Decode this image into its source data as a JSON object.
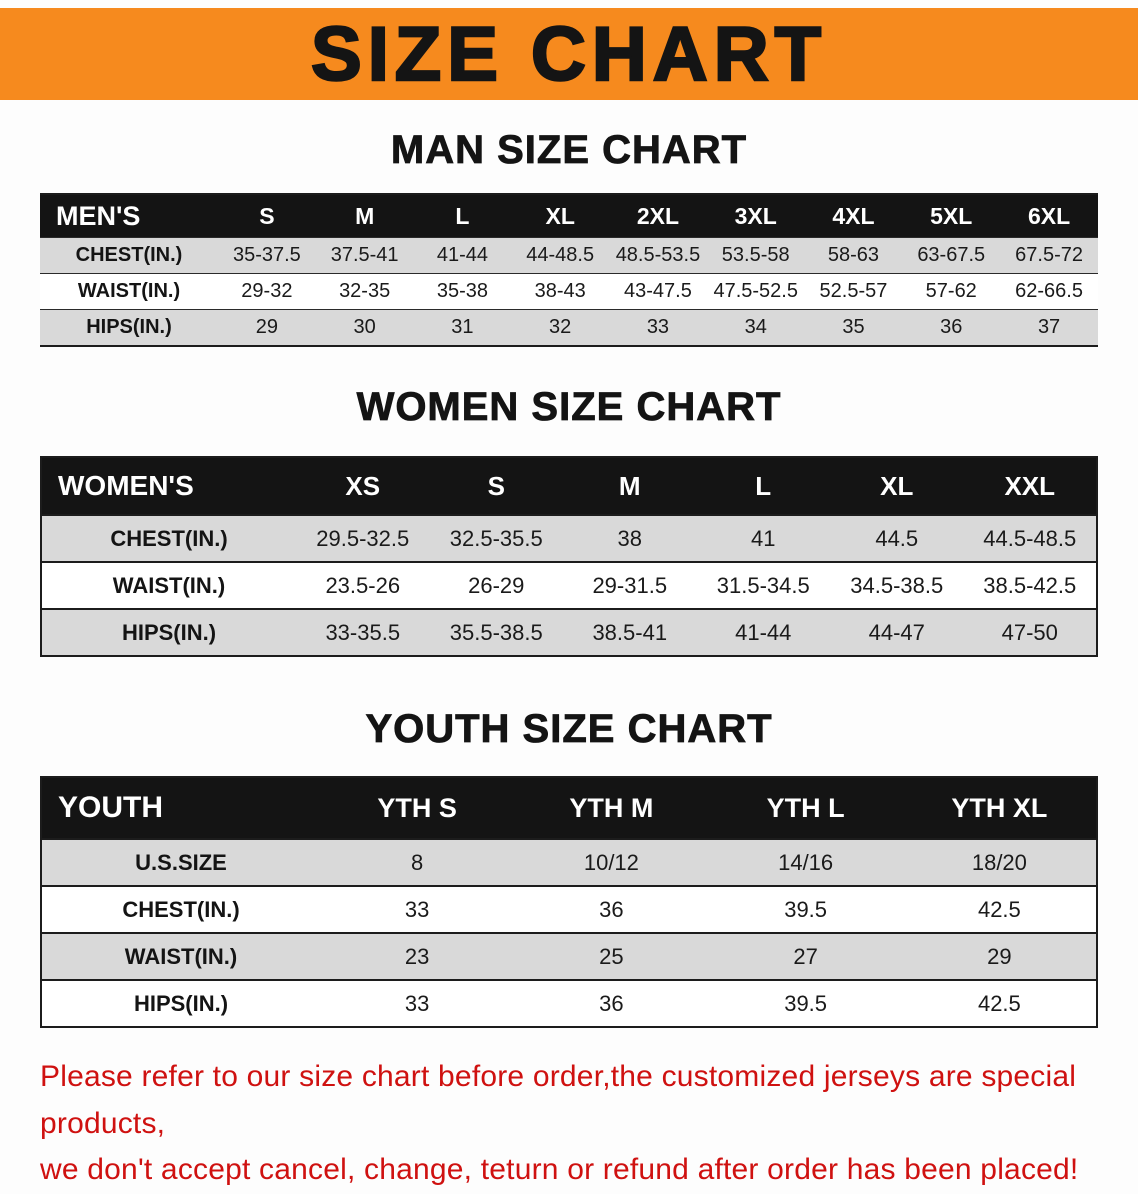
{
  "banner": {
    "title": "SIZE CHART"
  },
  "man": {
    "heading": "MAN SIZE CHART",
    "table": {
      "header": [
        "MEN'S",
        "S",
        "M",
        "L",
        "XL",
        "2XL",
        "3XL",
        "4XL",
        "5XL",
        "6XL"
      ],
      "rows": [
        [
          "CHEST(IN.)",
          "35-37.5",
          "37.5-41",
          "41-44",
          "44-48.5",
          "48.5-53.5",
          "53.5-58",
          "58-63",
          "63-67.5",
          "67.5-72"
        ],
        [
          "WAIST(IN.)",
          "29-32",
          "32-35",
          "35-38",
          "38-43",
          "43-47.5",
          "47.5-52.5",
          "52.5-57",
          "57-62",
          "62-66.5"
        ],
        [
          "HIPS(IN.)",
          "29",
          "30",
          "31",
          "32",
          "33",
          "34",
          "35",
          "36",
          "37"
        ]
      ]
    }
  },
  "women": {
    "heading": "WOMEN SIZE CHART",
    "table": {
      "header": [
        "WOMEN'S",
        "XS",
        "S",
        "M",
        "L",
        "XL",
        "XXL"
      ],
      "rows": [
        [
          "CHEST(IN.)",
          "29.5-32.5",
          "32.5-35.5",
          "38",
          "41",
          "44.5",
          "44.5-48.5"
        ],
        [
          "WAIST(IN.)",
          "23.5-26",
          "26-29",
          "29-31.5",
          "31.5-34.5",
          "34.5-38.5",
          "38.5-42.5"
        ],
        [
          "HIPS(IN.)",
          "33-35.5",
          "35.5-38.5",
          "38.5-41",
          "41-44",
          "44-47",
          "47-50"
        ]
      ]
    }
  },
  "youth": {
    "heading": "YOUTH SIZE CHART",
    "table": {
      "header": [
        "YOUTH",
        "YTH S",
        "YTH M",
        "YTH L",
        "YTH XL"
      ],
      "rows": [
        [
          "U.S.SIZE",
          "8",
          "10/12",
          "14/16",
          "18/20"
        ],
        [
          "CHEST(IN.)",
          "33",
          "36",
          "39.5",
          "42.5"
        ],
        [
          "WAIST(IN.)",
          "23",
          "25",
          "27",
          "29"
        ],
        [
          "HIPS(IN.)",
          "33",
          "36",
          "39.5",
          "42.5"
        ]
      ]
    }
  },
  "footer": {
    "line1": "Please refer to our size chart before order,the customized jerseys are special products,",
    "line2": "we don't accept cancel, change, teturn or refund after order has been placed!"
  },
  "colors": {
    "banner_bg": "#f68a1e",
    "header_bg": "#141414",
    "row_alt": "#d9d9d9",
    "footer_text": "#cf1110"
  }
}
